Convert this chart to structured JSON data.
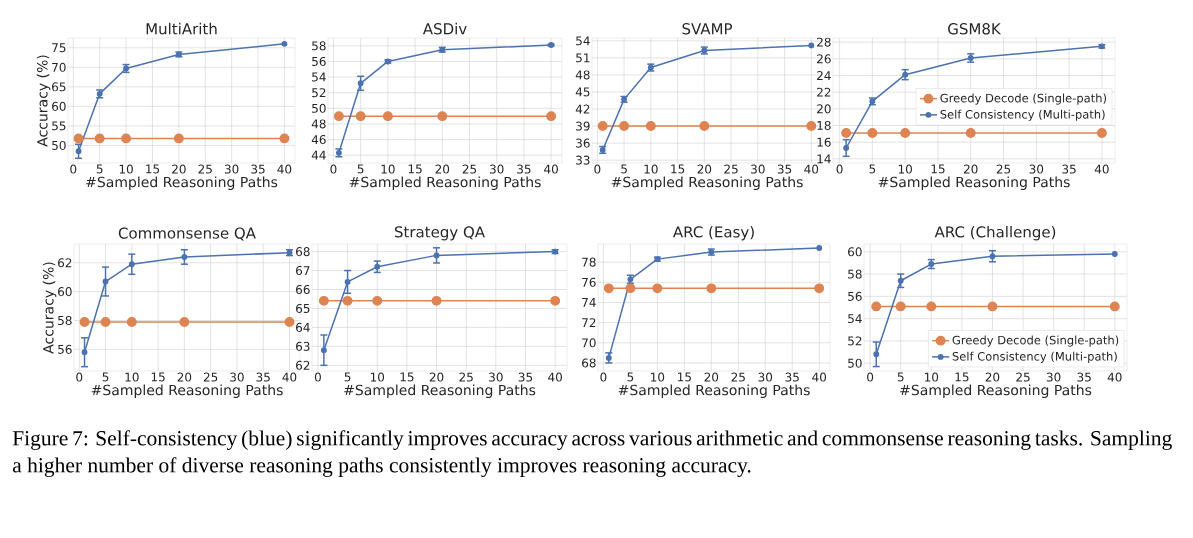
{
  "chart_data": [
    {
      "type": "line",
      "title": "MultiArith",
      "xlabel": "#Sampled Reasoning Paths",
      "ylabel": "Accuracy (%)",
      "x": [
        1,
        5,
        10,
        20,
        40
      ],
      "xlim": [
        -1,
        42
      ],
      "xticks": [
        0,
        5,
        10,
        15,
        20,
        25,
        30,
        35,
        40
      ],
      "ylim": [
        45.5,
        77.5
      ],
      "yticks": [
        50,
        55,
        60,
        65,
        70,
        75
      ],
      "grid": true,
      "legend": false,
      "marker": "circle",
      "series": [
        {
          "color": "#dd8452",
          "values": [
            51.8,
            51.8,
            51.8,
            51.8,
            51.8
          ]
        },
        {
          "color": "#4c72b0",
          "values": [
            48.5,
            63.2,
            69.7,
            73.3,
            76.0
          ],
          "errors": [
            1.8,
            1.0,
            1.0,
            0.6,
            null
          ]
        }
      ]
    },
    {
      "type": "line",
      "title": "ASDiv",
      "xlabel": "#Sampled Reasoning Paths",
      "x": [
        1,
        5,
        10,
        20,
        40
      ],
      "xlim": [
        -1,
        42
      ],
      "xticks": [
        0,
        5,
        10,
        15,
        20,
        25,
        30,
        35,
        40
      ],
      "ylim": [
        43,
        59
      ],
      "yticks": [
        44,
        46,
        48,
        50,
        52,
        54,
        56,
        58
      ],
      "grid": true,
      "legend": false,
      "marker": "circle",
      "series": [
        {
          "color": "#dd8452",
          "values": [
            49.0,
            49.0,
            49.0,
            49.0,
            49.0
          ]
        },
        {
          "color": "#4c72b0",
          "values": [
            44.3,
            53.2,
            56.0,
            57.5,
            58.1
          ],
          "errors": [
            0.5,
            0.9,
            0.2,
            0.3,
            0.1
          ]
        }
      ]
    },
    {
      "type": "line",
      "title": "SVAMP",
      "xlabel": "#Sampled Reasoning Paths",
      "x": [
        1,
        5,
        10,
        20,
        40
      ],
      "xlim": [
        -1,
        42
      ],
      "xticks": [
        0,
        5,
        10,
        15,
        20,
        25,
        30,
        35,
        40
      ],
      "ylim": [
        32.5,
        54.5
      ],
      "yticks": [
        33,
        36,
        39,
        42,
        45,
        48,
        51,
        54
      ],
      "grid": true,
      "legend": false,
      "marker": "circle",
      "series": [
        {
          "color": "#dd8452",
          "values": [
            39.0,
            39.0,
            39.0,
            39.0,
            39.0
          ]
        },
        {
          "color": "#4c72b0",
          "values": [
            34.8,
            43.7,
            49.3,
            52.3,
            53.2
          ],
          "errors": [
            0.6,
            0.5,
            0.6,
            0.6,
            null
          ]
        }
      ]
    },
    {
      "type": "line",
      "title": "GSM8K",
      "xlabel": "#Sampled Reasoning Paths",
      "x": [
        1,
        5,
        10,
        20,
        40
      ],
      "xlim": [
        -1,
        42
      ],
      "xticks": [
        0,
        5,
        10,
        15,
        20,
        25,
        30,
        35,
        40
      ],
      "ylim": [
        13.5,
        28.5
      ],
      "yticks": [
        14,
        16,
        18,
        20,
        22,
        24,
        26,
        28
      ],
      "grid": true,
      "legend": "right",
      "marker": "circle",
      "series": [
        {
          "name": "Greedy Decode (Single-path)",
          "color": "#dd8452",
          "values": [
            17.1,
            17.1,
            17.1,
            17.1,
            17.1
          ]
        },
        {
          "name": "Self Consistency (Multi-path)",
          "color": "#4c72b0",
          "values": [
            15.3,
            20.9,
            24.1,
            26.1,
            27.5
          ],
          "errors": [
            1.0,
            0.4,
            0.6,
            0.5,
            0.2
          ]
        }
      ]
    },
    {
      "type": "line",
      "title": "Commonsense QA",
      "xlabel": "#Sampled Reasoning Paths",
      "ylabel": "Accuracy (%)",
      "x": [
        1,
        5,
        10,
        20,
        40
      ],
      "xlim": [
        -1,
        42
      ],
      "xticks": [
        0,
        5,
        10,
        15,
        20,
        25,
        30,
        35,
        40
      ],
      "ylim": [
        54.5,
        63.3
      ],
      "yticks": [
        56,
        58,
        60,
        62
      ],
      "grid": true,
      "legend": false,
      "marker": "circle",
      "series": [
        {
          "color": "#dd8452",
          "values": [
            57.9,
            57.9,
            57.9,
            57.9,
            57.9
          ]
        },
        {
          "color": "#4c72b0",
          "values": [
            55.8,
            60.7,
            61.9,
            62.4,
            62.7
          ],
          "errors": [
            1.0,
            1.0,
            0.7,
            0.5,
            0.2
          ]
        }
      ]
    },
    {
      "type": "line",
      "title": "Strategy QA",
      "xlabel": "#Sampled Reasoning Paths",
      "x": [
        1,
        5,
        10,
        20,
        40
      ],
      "xlim": [
        -1,
        42
      ],
      "xticks": [
        0,
        5,
        10,
        15,
        20,
        25,
        30,
        35,
        40
      ],
      "ylim": [
        61.7,
        68.4
      ],
      "yticks": [
        62,
        63,
        64,
        65,
        66,
        67,
        68
      ],
      "grid": true,
      "legend": false,
      "marker": "circle",
      "series": [
        {
          "color": "#dd8452",
          "values": [
            65.4,
            65.4,
            65.4,
            65.4,
            65.4
          ]
        },
        {
          "color": "#4c72b0",
          "values": [
            62.8,
            66.4,
            67.2,
            67.8,
            68.0
          ],
          "errors": [
            0.8,
            0.6,
            0.3,
            0.4,
            0.1
          ]
        }
      ]
    },
    {
      "type": "line",
      "title": "ARC (Easy)",
      "xlabel": "#Sampled Reasoning Paths",
      "x": [
        1,
        5,
        10,
        20,
        40
      ],
      "xlim": [
        -1,
        42
      ],
      "xticks": [
        0,
        5,
        10,
        15,
        20,
        25,
        30,
        35,
        40
      ],
      "ylim": [
        67.2,
        79.8
      ],
      "yticks": [
        68,
        70,
        72,
        74,
        76,
        78
      ],
      "grid": true,
      "legend": false,
      "marker": "circle",
      "series": [
        {
          "color": "#dd8452",
          "values": [
            75.4,
            75.4,
            75.4,
            75.4,
            75.4
          ]
        },
        {
          "color": "#4c72b0",
          "values": [
            68.5,
            76.3,
            78.3,
            79.0,
            79.4
          ],
          "errors": [
            0.5,
            0.4,
            0.2,
            0.3,
            null
          ]
        }
      ]
    },
    {
      "type": "line",
      "title": "ARC (Challenge)",
      "xlabel": "#Sampled Reasoning Paths",
      "x": [
        1,
        5,
        10,
        20,
        40
      ],
      "xlim": [
        -1,
        42
      ],
      "xticks": [
        0,
        5,
        10,
        15,
        20,
        25,
        30,
        35,
        40
      ],
      "ylim": [
        49.3,
        60.7
      ],
      "yticks": [
        50,
        52,
        54,
        56,
        58,
        60
      ],
      "grid": true,
      "legend": "bottom right",
      "marker": "circle",
      "annotations": [
        "Figure 7: Self-consistency (blue) significantly improves accuracy across various arithmetic and commonsense reasoning tasks. Sampling a higher number of diverse reasoning paths consistently improves reasoning accuracy."
      ],
      "series": [
        {
          "name": "Greedy Decode (Single-path)",
          "color": "#dd8452",
          "values": [
            55.1,
            55.1,
            55.1,
            55.1,
            55.1
          ]
        },
        {
          "name": "Self Consistency (Multi-path)",
          "color": "#4c72b0",
          "values": [
            50.8,
            57.4,
            58.9,
            59.6,
            59.8
          ],
          "errors": [
            1.1,
            0.6,
            0.4,
            0.5,
            null
          ]
        }
      ]
    }
  ]
}
